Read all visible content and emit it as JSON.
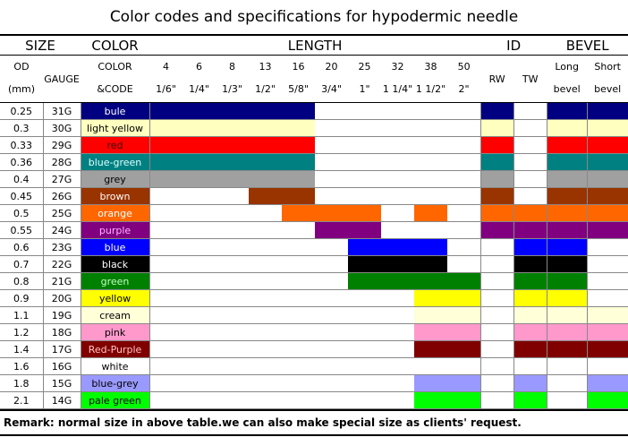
{
  "title": "Color codes and specifications for hypodermic needle",
  "groups": [
    "SIZE",
    "COLOR",
    "LENGTH",
    "ID",
    "BEVEL"
  ],
  "subheaders": [
    [
      "OD",
      "(mm)"
    ],
    [
      "GAUGE"
    ],
    [
      "COLOR",
      "&CODE"
    ],
    [
      "4",
      "1/6\""
    ],
    [
      "6",
      "1/4\""
    ],
    [
      "8",
      "1/3\""
    ],
    [
      "13",
      "1/2\""
    ],
    [
      "16",
      "5/8\""
    ],
    [
      "20",
      "3/4\""
    ],
    [
      "25",
      "1\""
    ],
    [
      "32",
      "1 1/4\""
    ],
    [
      "38",
      "1 1/2\""
    ],
    [
      "50",
      "2\""
    ],
    [
      "RW"
    ],
    [
      "TW"
    ],
    [
      "Long",
      "bevel"
    ],
    [
      "Short",
      "bevel"
    ]
  ],
  "rows": [
    {
      "od": "0.25",
      "gauge": "31G",
      "color": "bule",
      "hex": "#000080",
      "ink": "#ffffff",
      "fill": [
        1,
        1,
        1,
        1,
        1,
        0,
        0,
        0,
        0,
        0,
        1,
        0,
        1,
        1
      ]
    },
    {
      "od": "0.3",
      "gauge": "30G",
      "color": "light yellow",
      "hex": "#ffffc0",
      "ink": "#000000",
      "fill": [
        1,
        1,
        1,
        1,
        1,
        0,
        0,
        0,
        0,
        0,
        1,
        0,
        1,
        1
      ]
    },
    {
      "od": "0.33",
      "gauge": "29G",
      "color": "red",
      "hex": "#ff0000",
      "ink": "#400000",
      "fill": [
        1,
        1,
        1,
        1,
        1,
        0,
        0,
        0,
        0,
        0,
        1,
        0,
        1,
        1
      ]
    },
    {
      "od": "0.36",
      "gauge": "28G",
      "color": "blue-green",
      "hex": "#008080",
      "ink": "#e0ffff",
      "fill": [
        1,
        1,
        1,
        1,
        1,
        0,
        0,
        0,
        0,
        0,
        1,
        0,
        1,
        1
      ]
    },
    {
      "od": "0.4",
      "gauge": "27G",
      "color": "grey",
      "hex": "#a0a0a0",
      "ink": "#000000",
      "fill": [
        1,
        1,
        1,
        1,
        1,
        0,
        0,
        0,
        0,
        0,
        1,
        0,
        1,
        1
      ]
    },
    {
      "od": "0.45",
      "gauge": "26G",
      "color": "brown",
      "hex": "#993300",
      "ink": "#ffffff",
      "fill": [
        0,
        0,
        0,
        1,
        1,
        0,
        0,
        0,
        0,
        0,
        1,
        0,
        1,
        1
      ]
    },
    {
      "od": "0.5",
      "gauge": "25G",
      "color": "orange",
      "hex": "#ff6600",
      "ink": "#ffffff",
      "fill": [
        0,
        0,
        0,
        0,
        1,
        1,
        1,
        0,
        1,
        0,
        1,
        1,
        1,
        1
      ]
    },
    {
      "od": "0.55",
      "gauge": "24G",
      "color": "purple",
      "hex": "#800080",
      "ink": "#ffb0ff",
      "fill": [
        0,
        0,
        0,
        0,
        0,
        1,
        1,
        0,
        0,
        0,
        1,
        1,
        1,
        1
      ]
    },
    {
      "od": "0.6",
      "gauge": "23G",
      "color": "blue",
      "hex": "#0000ff",
      "ink": "#ffffff",
      "fill": [
        0,
        0,
        0,
        0,
        0,
        0,
        1,
        1,
        1,
        0,
        0,
        1,
        1,
        0
      ]
    },
    {
      "od": "0.7",
      "gauge": "22G",
      "color": "black",
      "hex": "#000000",
      "ink": "#ffffff",
      "fill": [
        0,
        0,
        0,
        0,
        0,
        0,
        1,
        1,
        1,
        0,
        0,
        1,
        1,
        0
      ]
    },
    {
      "od": "0.8",
      "gauge": "21G",
      "color": "green",
      "hex": "#008000",
      "ink": "#c0ffc0",
      "fill": [
        0,
        0,
        0,
        0,
        0,
        0,
        1,
        1,
        1,
        1,
        0,
        1,
        1,
        0
      ]
    },
    {
      "od": "0.9",
      "gauge": "20G",
      "color": "yellow",
      "hex": "#ffff00",
      "ink": "#000000",
      "fill": [
        0,
        0,
        0,
        0,
        0,
        0,
        0,
        0,
        1,
        1,
        0,
        1,
        1,
        0
      ]
    },
    {
      "od": "1.1",
      "gauge": "19G",
      "color": "cream",
      "hex": "#ffffd8",
      "ink": "#000000",
      "fill": [
        0,
        0,
        0,
        0,
        0,
        0,
        0,
        0,
        1,
        1,
        0,
        1,
        1,
        1
      ]
    },
    {
      "od": "1.2",
      "gauge": "18G",
      "color": "pink",
      "hex": "#ff99cc",
      "ink": "#000000",
      "fill": [
        0,
        0,
        0,
        0,
        0,
        0,
        0,
        0,
        1,
        1,
        0,
        1,
        1,
        1
      ]
    },
    {
      "od": "1.4",
      "gauge": "17G",
      "color": "Red-Purple",
      "hex": "#800000",
      "ink": "#ffc0c0",
      "fill": [
        0,
        0,
        0,
        0,
        0,
        0,
        0,
        0,
        1,
        1,
        0,
        1,
        1,
        1
      ]
    },
    {
      "od": "1.6",
      "gauge": "16G",
      "color": "white",
      "hex": "#ffffff",
      "ink": "#000000",
      "fill": [
        0,
        0,
        0,
        0,
        0,
        0,
        0,
        0,
        0,
        0,
        0,
        0,
        0,
        0
      ]
    },
    {
      "od": "1.8",
      "gauge": "15G",
      "color": "blue-grey",
      "hex": "#9999ff",
      "ink": "#000000",
      "fill": [
        0,
        0,
        0,
        0,
        0,
        0,
        0,
        0,
        1,
        1,
        0,
        1,
        0,
        1
      ]
    },
    {
      "od": "2.1",
      "gauge": "14G",
      "color": "pale green",
      "hex": "#00ff00",
      "ink": "#000000",
      "fill": [
        0,
        0,
        0,
        0,
        0,
        0,
        0,
        0,
        1,
        1,
        0,
        1,
        0,
        1
      ]
    }
  ],
  "remark": "Remark: normal size in above table.we can also make special size as clients' request."
}
